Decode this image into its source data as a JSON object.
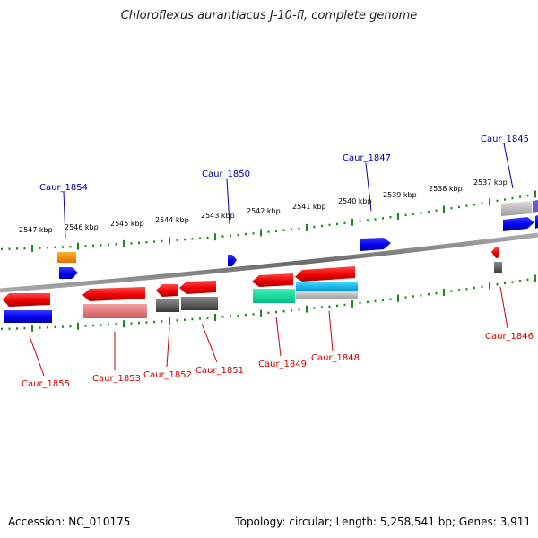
{
  "title": "Chloroflexus aurantiacus J-10-fl, complete genome",
  "accession": "Accession: NC_010175",
  "summary": "Topology: circular; Length: 5,258,541 bp; Genes: 3,911",
  "colors": {
    "forward_label": "#0000a8",
    "reverse_label": "#cc0000",
    "tick": "#1a8a1a",
    "backbone": "#777777"
  },
  "kbp_labels": [
    "2547 kbp",
    "2546 kbp",
    "2545 kbp",
    "2544 kbp",
    "2543 kbp",
    "2542 kbp",
    "2541 kbp",
    "2540 kbp",
    "2539 kbp",
    "2538 kbp",
    "2537 kbp"
  ],
  "forward_labels": [
    "Caur_1854",
    "Caur_1850",
    "Caur_1847",
    "Caur_1845"
  ],
  "reverse_labels": [
    "Caur_1855",
    "Caur_1853",
    "Caur_1852",
    "Caur_1851",
    "Caur_1849",
    "Caur_1848",
    "Caur_1846"
  ]
}
